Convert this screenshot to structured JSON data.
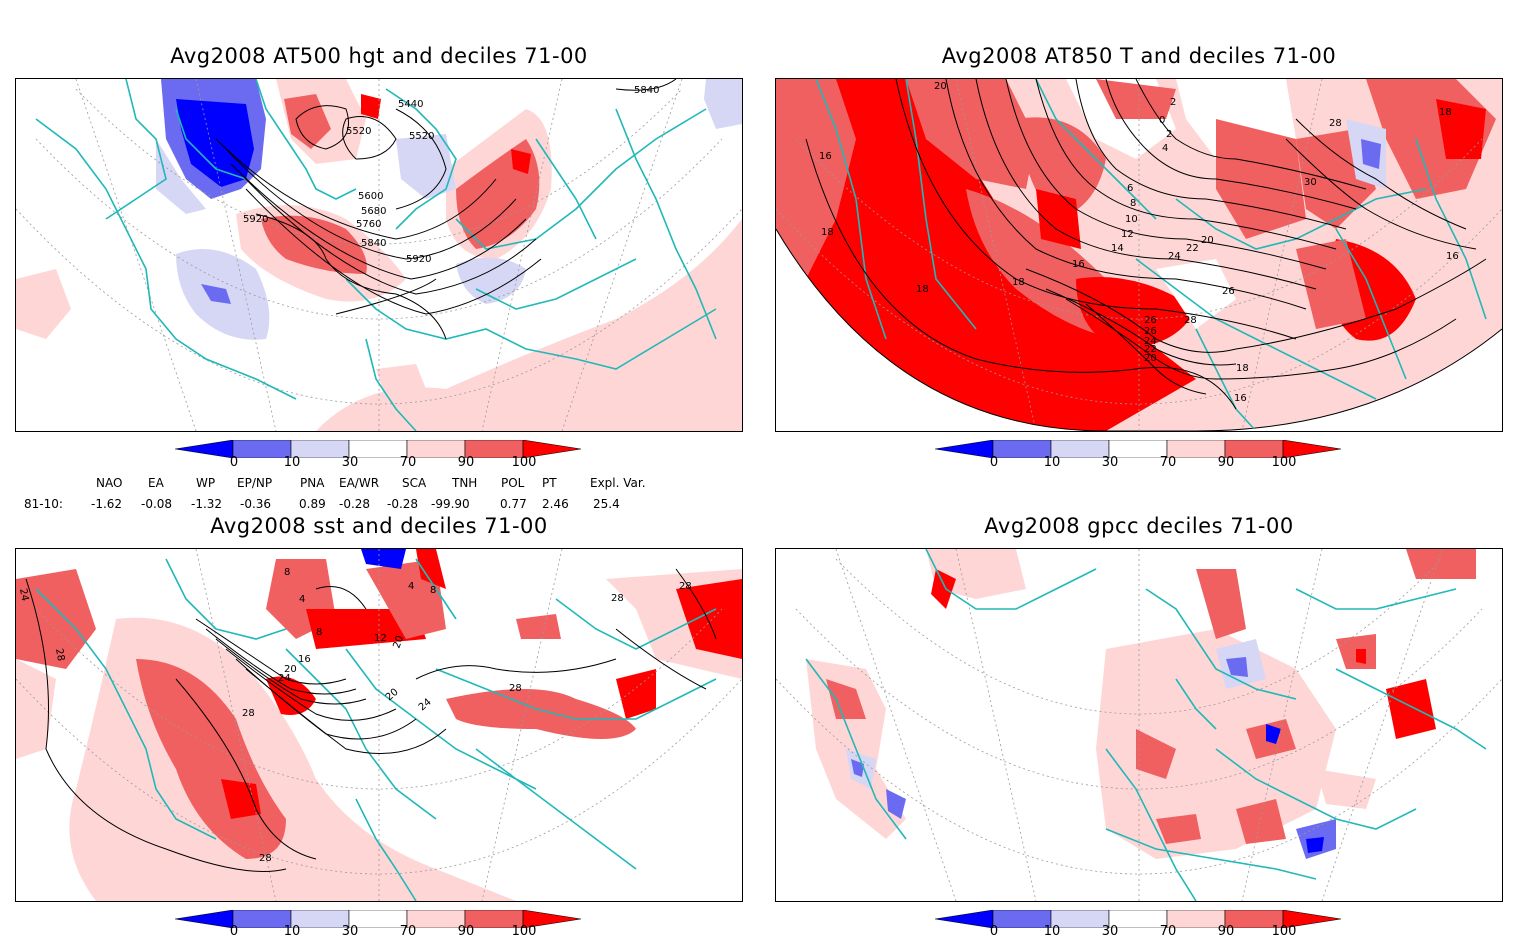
{
  "panels": [
    {
      "title": "Avg2008 AT500 hgt and deciles 71-00",
      "contour_labels": [
        "5440",
        "5520",
        "5520",
        "5600",
        "5680",
        "5760",
        "5840",
        "5920",
        "5920",
        "5840"
      ]
    },
    {
      "title": "Avg2008 AT850 T and deciles 71-00",
      "contour_labels": [
        "20",
        "2",
        "0",
        "2",
        "4",
        "6",
        "8",
        "10",
        "12",
        "14",
        "16",
        "18",
        "18",
        "18",
        "20",
        "22",
        "24",
        "26",
        "28",
        "26",
        "24",
        "22",
        "20",
        "18",
        "16",
        "26",
        "28",
        "18",
        "16",
        "30",
        "16"
      ]
    },
    {
      "title": "Avg2008 sst and deciles 71-00",
      "contour_labels": [
        "24",
        "28",
        "8",
        "4",
        "8",
        "12",
        "16",
        "20",
        "20",
        "24",
        "20",
        "24",
        "28",
        "28",
        "28",
        "28",
        "28",
        "4",
        "8"
      ]
    },
    {
      "title": "Avg2008 gpcc deciles 71-00",
      "contour_labels": []
    }
  ],
  "colorbar": {
    "ticks": [
      "0",
      "10",
      "30",
      "70",
      "90",
      "100"
    ],
    "colors": [
      "#0000ff",
      "#6b6bf2",
      "#d6d6f5",
      "#ffffff",
      "#ffd6d6",
      "#f06060",
      "#ff0000"
    ]
  },
  "indices": {
    "headers": [
      "NAO",
      "EA",
      "WP",
      "EP/NP",
      "PNA",
      "EA/WR",
      "SCA",
      "TNH",
      "POL",
      "PT",
      "Expl. Var."
    ],
    "row_label": "81-10:",
    "values": [
      "-1.62",
      "-0.08",
      "-1.32",
      "-0.36",
      "0.89",
      "-0.28",
      "-0.28",
      "-99.90",
      "0.77",
      "2.46",
      "25.4"
    ]
  },
  "map_colors": {
    "coast": "#20b8b8",
    "contour": "#000000",
    "grid": "#9a9a9a",
    "deep_red": "#ff0000",
    "mid_red": "#f06060",
    "light_red": "#ffd6d6",
    "deep_blue": "#0000ff",
    "mid_blue": "#6b6bf2",
    "light_blue": "#d6d6f5"
  }
}
